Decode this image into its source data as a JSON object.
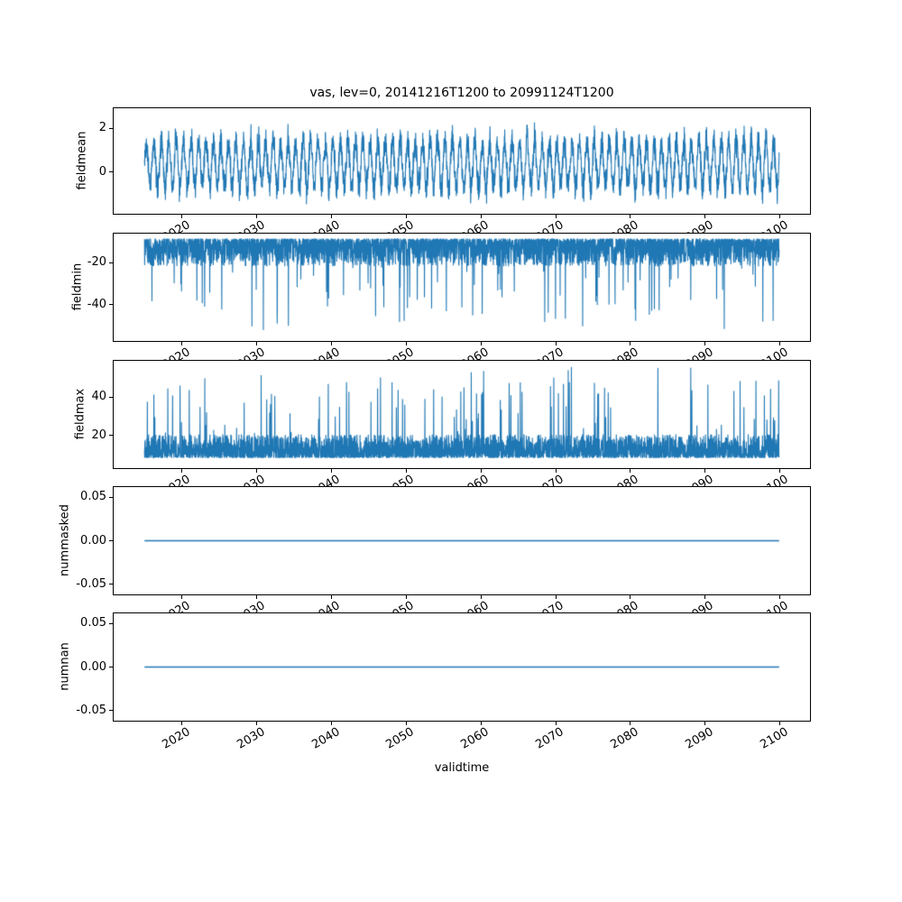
{
  "title": "vas, lev=0, 20141216T1200 to 20991124T1200",
  "xlabel": "validtime",
  "style": {
    "line_color": "#1f77b4",
    "background": "#ffffff",
    "text_color": "#000000"
  },
  "x_axis": {
    "xlim": [
      2010.71,
      2104.15
    ],
    "data_range": [
      2014.96,
      2099.9
    ],
    "ticks": [
      {
        "v": 2020,
        "label": "2020"
      },
      {
        "v": 2030,
        "label": "2030"
      },
      {
        "v": 2040,
        "label": "2040"
      },
      {
        "v": 2050,
        "label": "2050"
      },
      {
        "v": 2060,
        "label": "2060"
      },
      {
        "v": 2070,
        "label": "2070"
      },
      {
        "v": 2080,
        "label": "2080"
      },
      {
        "v": 2090,
        "label": "2090"
      },
      {
        "v": 2100,
        "label": "2100"
      }
    ]
  },
  "chart_data": [
    {
      "type": "line",
      "ylabel": "fieldmean",
      "ylim": [
        -1.95,
        2.95
      ],
      "yticks": [
        {
          "v": 2,
          "label": "2"
        },
        {
          "v": 0,
          "label": "0"
        }
      ],
      "series": [
        {
          "name": "fieldmean",
          "color": "#1f77b4",
          "approx_range": [
            -1.6,
            2.85
          ],
          "description": "dense seasonal oscillation around ~0.3 over 2015-2100",
          "synth": {
            "kind": "seasonal",
            "seed": 42,
            "n": 3500,
            "base": 0.35,
            "amp": 1.05,
            "amp_jitter": 0.4,
            "noise": 0.75,
            "cycles": 85
          }
        }
      ]
    },
    {
      "type": "line",
      "ylabel": "fieldmin",
      "ylim": [
        -58,
        -5.5
      ],
      "yticks": [
        {
          "v": -20,
          "label": "-20"
        },
        {
          "v": -40,
          "label": "-40"
        }
      ],
      "series": [
        {
          "name": "fieldmin",
          "color": "#1f77b4",
          "approx_range": [
            -55.7,
            -8.2
          ],
          "description": "dense band near -9 to -22 with downward spikes to about -55",
          "synth": {
            "kind": "spikes-down",
            "seed": 7,
            "n": 4000,
            "base": -8.5,
            "spread": 13,
            "spike_prob": 0.025,
            "spike_min": 6,
            "spike_max": 36
          }
        }
      ]
    },
    {
      "type": "line",
      "ylabel": "fieldmax",
      "ylim": [
        2.5,
        59.5
      ],
      "yticks": [
        {
          "v": 40,
          "label": "40"
        },
        {
          "v": 20,
          "label": "20"
        }
      ],
      "series": [
        {
          "name": "fieldmax",
          "color": "#1f77b4",
          "approx_range": [
            5.0,
            57.0
          ],
          "description": "dense band near 9 to 21 with upward spikes to about 56",
          "synth": {
            "kind": "spikes-up",
            "seed": 13,
            "n": 4000,
            "base": 8.5,
            "spread": 12,
            "spike_prob": 0.03,
            "spike_min": 5,
            "spike_max": 39
          }
        }
      ]
    },
    {
      "type": "line",
      "ylabel": "nummasked",
      "ylim": [
        -0.0625,
        0.0625
      ],
      "yticks": [
        {
          "v": 0.05,
          "label": "0.05"
        },
        {
          "v": 0,
          "label": "0.00"
        },
        {
          "v": -0.05,
          "label": "-0.05"
        }
      ],
      "series": [
        {
          "name": "nummasked",
          "color": "#1f77b4",
          "approx_range": [
            0,
            0
          ],
          "description": "constant zero line",
          "synth": {
            "kind": "constant",
            "value": 0
          }
        }
      ]
    },
    {
      "type": "line",
      "ylabel": "numnan",
      "ylim": [
        -0.0625,
        0.0625
      ],
      "yticks": [
        {
          "v": 0.05,
          "label": "0.05"
        },
        {
          "v": 0,
          "label": "0.00"
        },
        {
          "v": -0.05,
          "label": "-0.05"
        }
      ],
      "series": [
        {
          "name": "numnan",
          "color": "#1f77b4",
          "approx_range": [
            0,
            0
          ],
          "description": "constant zero line",
          "synth": {
            "kind": "constant",
            "value": 0
          }
        }
      ]
    }
  ]
}
